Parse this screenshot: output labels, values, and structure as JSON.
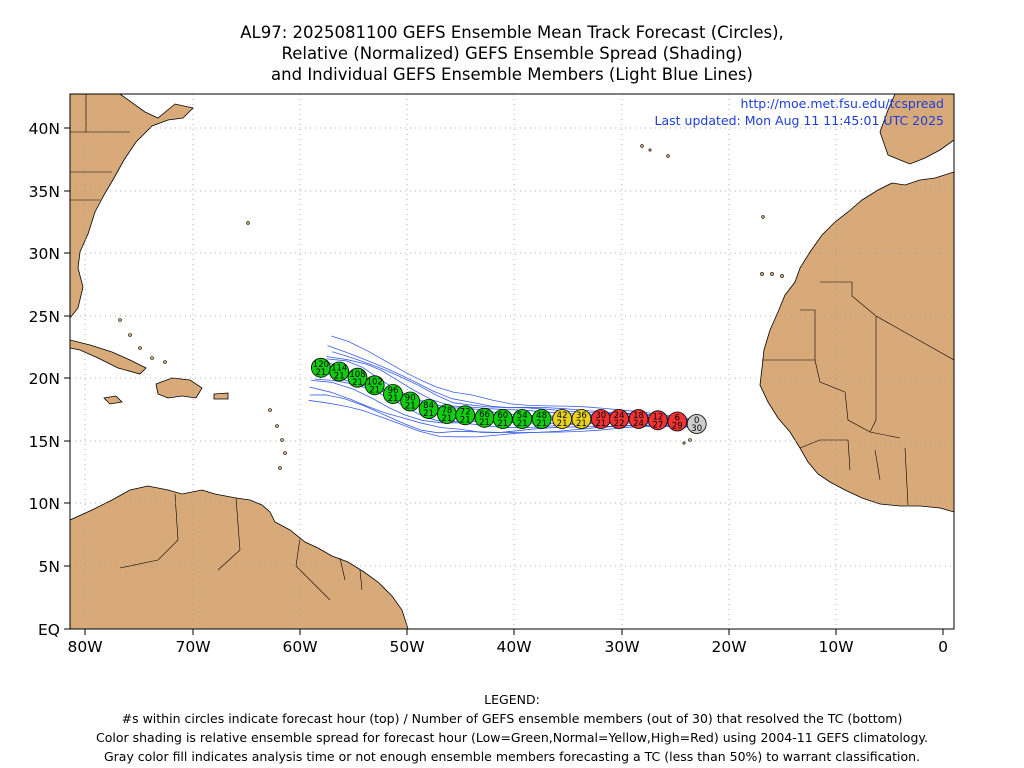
{
  "title": {
    "line1": "AL97: 2025081100 GEFS Ensemble Mean Track Forecast (Circles),",
    "line2": "Relative (Normalized) GEFS Ensemble Spread (Shading)",
    "line3": "and Individual GEFS Ensemble Members (Light Blue Lines)"
  },
  "info": {
    "url": "http://moe.met.fsu.edu/tcspread",
    "updated": "Last updated: Mon Aug 11 11:45:01 UTC 2025"
  },
  "axes": {
    "lat_ticks": [
      "40N",
      "35N",
      "30N",
      "25N",
      "20N",
      "15N",
      "10N",
      "5N",
      "EQ"
    ],
    "lon_ticks": [
      "80W",
      "70W",
      "60W",
      "50W",
      "40W",
      "30W",
      "20W",
      "10W",
      "0"
    ],
    "lon_range": [
      -81.3,
      0.8
    ],
    "lat_range": [
      0,
      42.8
    ]
  },
  "colors": {
    "land": "#d9aa79",
    "ocean": "#ffffff",
    "member_line": "#3a5ee8",
    "low": "#12cc12",
    "normal": "#e8d21e",
    "high": "#ee3333",
    "analysis": "#cccccc"
  },
  "track": [
    {
      "hour": "0",
      "members": "30",
      "lon": -23.1,
      "lat": 16.4,
      "spread": "analysis"
    },
    {
      "hour": "6",
      "members": "29",
      "lon": -24.9,
      "lat": 16.6,
      "spread": "high"
    },
    {
      "hour": "12",
      "members": "27",
      "lon": -26.7,
      "lat": 16.7,
      "spread": "high"
    },
    {
      "hour": "18",
      "members": "24",
      "lon": -28.5,
      "lat": 16.8,
      "spread": "high"
    },
    {
      "hour": "24",
      "members": "22",
      "lon": -30.3,
      "lat": 16.8,
      "spread": "high"
    },
    {
      "hour": "30",
      "members": "21",
      "lon": -32.0,
      "lat": 16.8,
      "spread": "high"
    },
    {
      "hour": "36",
      "members": "21",
      "lon": -33.8,
      "lat": 16.8,
      "spread": "normal"
    },
    {
      "hour": "42",
      "members": "21",
      "lon": -35.6,
      "lat": 16.8,
      "spread": "normal"
    },
    {
      "hour": "48",
      "members": "21",
      "lon": -37.5,
      "lat": 16.8,
      "spread": "low"
    },
    {
      "hour": "54",
      "members": "21",
      "lon": -39.3,
      "lat": 16.8,
      "spread": "low"
    },
    {
      "hour": "60",
      "members": "21",
      "lon": -41.1,
      "lat": 16.8,
      "spread": "low"
    },
    {
      "hour": "66",
      "members": "21",
      "lon": -42.8,
      "lat": 16.9,
      "spread": "low"
    },
    {
      "hour": "72",
      "members": "21",
      "lon": -44.6,
      "lat": 17.1,
      "spread": "low"
    },
    {
      "hour": "78",
      "members": "21",
      "lon": -46.3,
      "lat": 17.2,
      "spread": "low"
    },
    {
      "hour": "84",
      "members": "21",
      "lon": -48.0,
      "lat": 17.6,
      "spread": "low"
    },
    {
      "hour": "90",
      "members": "21",
      "lon": -49.7,
      "lat": 18.2,
      "spread": "low"
    },
    {
      "hour": "96",
      "members": "21",
      "lon": -51.3,
      "lat": 18.8,
      "spread": "low"
    },
    {
      "hour": "102",
      "members": "21",
      "lon": -53.0,
      "lat": 19.5,
      "spread": "low"
    },
    {
      "hour": "108",
      "members": "21",
      "lon": -54.6,
      "lat": 20.1,
      "spread": "low"
    },
    {
      "hour": "114",
      "members": "21",
      "lon": -56.3,
      "lat": 20.6,
      "spread": "low"
    },
    {
      "hour": "120",
      "members": "21",
      "lon": -58.0,
      "lat": 20.9,
      "spread": "low"
    }
  ],
  "legend": {
    "heading": "LEGEND:",
    "line1": "#s within circles indicate forecast hour (top) / Number of GEFS ensemble members (out of 30) that resolved the TC (bottom)",
    "line2": "Color shading is relative ensemble spread for forecast hour (Low=Green,Normal=Yellow,High=Red) using 2004-11 GEFS climatology.",
    "line3": "Gray color fill indicates analysis time or not enough ensemble members forecasting a TC (less than 50%) to warrant classification."
  }
}
